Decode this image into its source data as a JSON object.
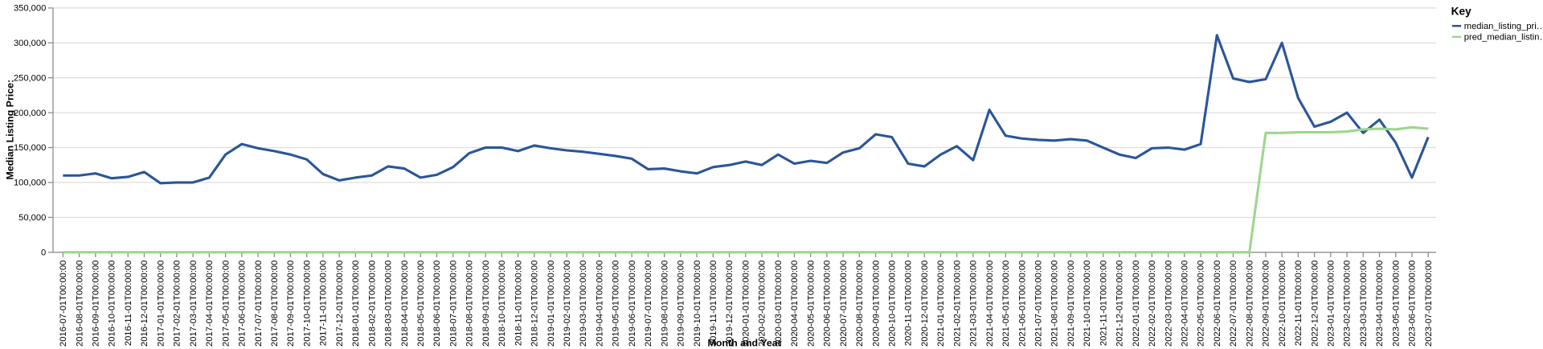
{
  "chart_data": {
    "type": "line",
    "x_label": "Month and Year",
    "y_label": "Median Listing Price:",
    "legend_title": "Key",
    "legend_position": "top-right",
    "grid": true,
    "categories": [
      "2016-07-01T00:00:00",
      "2016-08-01T00:00:00",
      "2016-09-01T00:00:00",
      "2016-10-01T00:00:00",
      "2016-11-01T00:00:00",
      "2016-12-01T00:00:00",
      "2017-01-01T00:00:00",
      "2017-02-01T00:00:00",
      "2017-03-01T00:00:00",
      "2017-04-01T00:00:00",
      "2017-05-01T00:00:00",
      "2017-06-01T00:00:00",
      "2017-07-01T00:00:00",
      "2017-08-01T00:00:00",
      "2017-09-01T00:00:00",
      "2017-10-01T00:00:00",
      "2017-11-01T00:00:00",
      "2017-12-01T00:00:00",
      "2018-01-01T00:00:00",
      "2018-02-01T00:00:00",
      "2018-03-01T00:00:00",
      "2018-04-01T00:00:00",
      "2018-05-01T00:00:00",
      "2018-06-01T00:00:00",
      "2018-07-01T00:00:00",
      "2018-08-01T00:00:00",
      "2018-09-01T00:00:00",
      "2018-10-01T00:00:00",
      "2018-11-01T00:00:00",
      "2018-12-01T00:00:00",
      "2019-01-01T00:00:00",
      "2019-02-01T00:00:00",
      "2019-03-01T00:00:00",
      "2019-04-01T00:00:00",
      "2019-05-01T00:00:00",
      "2019-06-01T00:00:00",
      "2019-07-01T00:00:00",
      "2019-08-01T00:00:00",
      "2019-09-01T00:00:00",
      "2019-10-01T00:00:00",
      "2019-11-01T00:00:00",
      "2019-12-01T00:00:00",
      "2020-01-01T00:00:00",
      "2020-02-01T00:00:00",
      "2020-03-01T00:00:00",
      "2020-04-01T00:00:00",
      "2020-05-01T00:00:00",
      "2020-06-01T00:00:00",
      "2020-07-01T00:00:00",
      "2020-08-01T00:00:00",
      "2020-09-01T00:00:00",
      "2020-10-01T00:00:00",
      "2020-11-01T00:00:00",
      "2020-12-01T00:00:00",
      "2021-01-01T00:00:00",
      "2021-02-01T00:00:00",
      "2021-03-01T00:00:00",
      "2021-04-01T00:00:00",
      "2021-05-01T00:00:00",
      "2021-06-01T00:00:00",
      "2021-07-01T00:00:00",
      "2021-08-01T00:00:00",
      "2021-09-01T00:00:00",
      "2021-10-01T00:00:00",
      "2021-11-01T00:00:00",
      "2021-12-01T00:00:00",
      "2022-01-01T00:00:00",
      "2022-02-01T00:00:00",
      "2022-03-01T00:00:00",
      "2022-04-01T00:00:00",
      "2022-05-01T00:00:00",
      "2022-06-01T00:00:00",
      "2022-07-01T00:00:00",
      "2022-08-01T00:00:00",
      "2022-09-01T00:00:00",
      "2022-10-01T00:00:00",
      "2022-11-01T00:00:00",
      "2022-12-01T00:00:00",
      "2023-01-01T00:00:00",
      "2023-02-01T00:00:00",
      "2023-03-01T00:00:00",
      "2023-04-01T00:00:00",
      "2023-05-01T00:00:00",
      "2023-06-01T00:00:00",
      "2023-07-01T00:00:00"
    ],
    "series": [
      {
        "name": "median_listing_pri…",
        "color": "#2a5599",
        "values": [
          110000,
          110000,
          113000,
          106000,
          108000,
          115000,
          99000,
          100000,
          100000,
          107000,
          140000,
          155000,
          149000,
          145000,
          140000,
          133000,
          112000,
          103000,
          107000,
          110000,
          123000,
          120000,
          107000,
          111000,
          122000,
          142000,
          150000,
          150000,
          145000,
          153000,
          149000,
          146000,
          144000,
          141000,
          138000,
          134000,
          119000,
          120000,
          116000,
          113000,
          122000,
          125000,
          130000,
          125000,
          140000,
          127000,
          131000,
          128000,
          143000,
          149000,
          169000,
          165000,
          127000,
          123000,
          140000,
          152000,
          132000,
          204000,
          167000,
          163000,
          161000,
          160000,
          162000,
          160000,
          150000,
          140000,
          135000,
          149000,
          150000,
          147000,
          155000,
          311000,
          249000,
          244000,
          248000,
          300000,
          221000,
          180000,
          187000,
          200000,
          171000,
          190000,
          157000,
          107000,
          165000
        ]
      },
      {
        "name": "pred_median_listin…",
        "color": "#9dd68f",
        "values": [
          0,
          0,
          0,
          0,
          0,
          0,
          0,
          0,
          0,
          0,
          0,
          0,
          0,
          0,
          0,
          0,
          0,
          0,
          0,
          0,
          0,
          0,
          0,
          0,
          0,
          0,
          0,
          0,
          0,
          0,
          0,
          0,
          0,
          0,
          0,
          0,
          0,
          0,
          0,
          0,
          0,
          0,
          0,
          0,
          0,
          0,
          0,
          0,
          0,
          0,
          0,
          0,
          0,
          0,
          0,
          0,
          0,
          0,
          0,
          0,
          0,
          0,
          0,
          0,
          0,
          0,
          0,
          0,
          0,
          0,
          0,
          0,
          0,
          0,
          171000,
          171000,
          172000,
          172000,
          172000,
          173000,
          176000,
          177000,
          176000,
          179000,
          177000
        ]
      }
    ],
    "ylim": [
      0,
      350000
    ],
    "yticks": [
      0,
      {
        "value": 50000,
        "label": "50,000"
      },
      {
        "value": 100000,
        "label": "100,000"
      },
      {
        "value": 150000,
        "label": "150,000"
      },
      {
        "value": 200000,
        "label": "200,000"
      },
      {
        "value": 250000,
        "label": "250,000"
      },
      {
        "value": 300000,
        "label": "300,000"
      },
      {
        "value": 350000,
        "label": "350,000"
      }
    ]
  }
}
